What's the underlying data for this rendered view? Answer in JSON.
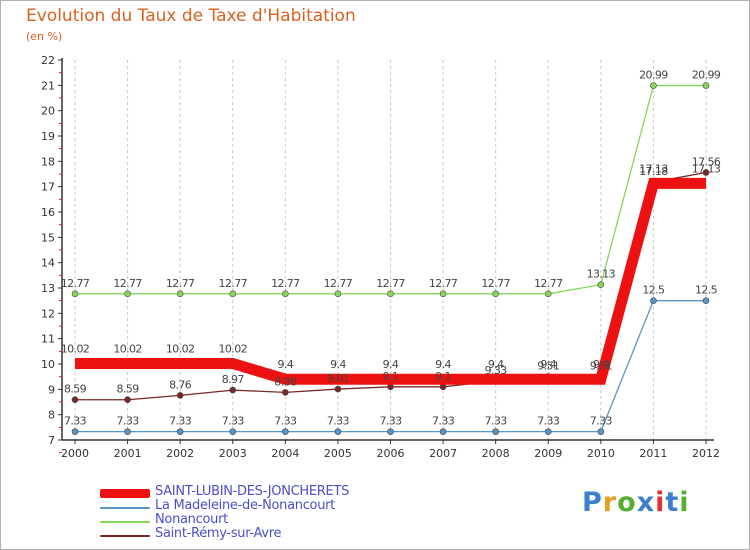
{
  "chart_data": {
    "type": "line",
    "title": "Evolution du Taux de Taxe d'Habitation",
    "unit_label": "(en %)",
    "x": [
      "2000",
      "2001",
      "2002",
      "2003",
      "2004",
      "2005",
      "2006",
      "2007",
      "2008",
      "2009",
      "2010",
      "2011",
      "2012"
    ],
    "ylim": [
      7,
      22
    ],
    "yticks": [
      7,
      8,
      9,
      10,
      11,
      12,
      13,
      14,
      15,
      16,
      17,
      18,
      19,
      20,
      21,
      22
    ],
    "grid": "vertical dashed",
    "legend_position": "bottom-left",
    "series": [
      {
        "name": "Nonancourt",
        "color": "#86d65a",
        "values": [
          12.77,
          12.77,
          12.77,
          12.77,
          12.77,
          12.77,
          12.77,
          12.77,
          12.77,
          12.77,
          13.13,
          20.99,
          20.99
        ],
        "labels": [
          "12.77",
          "12.77",
          "12.77",
          "12.77",
          "12.77",
          "12.77",
          "12.77",
          "12.77",
          "12.77",
          "12.77",
          "13.13",
          "20.99",
          "20.99"
        ]
      },
      {
        "name": "La Madeleine-de-Nonancourt",
        "color": "#5a95c8",
        "values": [
          7.33,
          7.33,
          7.33,
          7.33,
          7.33,
          7.33,
          7.33,
          7.33,
          7.33,
          7.33,
          7.33,
          12.5,
          12.5
        ],
        "labels": [
          "7.33",
          "7.33",
          "7.33",
          "7.33",
          "7.33",
          "7.33",
          "7.33",
          "7.33",
          "7.33",
          "7.33",
          "7.33",
          "12.5",
          "12.5"
        ]
      },
      {
        "name": "Saint-Rémy-sur-Avre",
        "color": "#7a2727",
        "values": [
          8.59,
          8.59,
          8.76,
          8.97,
          8.88,
          9.01,
          9.1,
          9.1,
          9.33,
          9.51,
          9.51,
          17.18,
          17.56
        ],
        "labels": [
          "8.59",
          "8.59",
          "8.76",
          "8.97",
          "8.88",
          "9.01",
          "9.1",
          "9.1",
          "9.33",
          "9.51",
          "9.51",
          "17.18",
          "17.56"
        ]
      },
      {
        "name": "SAINT-LUBIN-DES-JONCHERETS",
        "color": "#ee1111",
        "values": [
          10.02,
          10.02,
          10.02,
          10.02,
          9.4,
          9.4,
          9.4,
          9.4,
          9.4,
          9.4,
          9.4,
          17.13,
          17.13
        ],
        "labels": [
          "10.02",
          "10.02",
          "10.02",
          "10.02",
          "9.4",
          "9.4",
          "9.4",
          "9.4",
          "9.4",
          "9.4",
          "9.4",
          "17.13",
          "17.13"
        ]
      }
    ]
  },
  "legend": {
    "items": [
      {
        "label": "SAINT-LUBIN-DES-JONCHERETS",
        "color": "#ee1111",
        "text_color": "#4d4dcc",
        "weight": "thick"
      },
      {
        "label": "La Madeleine-de-Nonancourt",
        "color": "#5a95c8",
        "text_color": "#4d4dcc",
        "weight": "thin"
      },
      {
        "label": "Nonancourt",
        "color": "#86d65a",
        "text_color": "#4d4dcc",
        "weight": "thin"
      },
      {
        "label": "Saint-Rémy-sur-Avre",
        "color": "#7a2727",
        "text_color": "#4d4dcc",
        "weight": "thin"
      }
    ]
  },
  "logo": {
    "text": "Proxiti",
    "letter_colors": [
      "#3a7fd0",
      "#e8a020",
      "#55b030",
      "#3a7fd0",
      "#e03030",
      "#3a7fd0",
      "#55b030"
    ]
  }
}
